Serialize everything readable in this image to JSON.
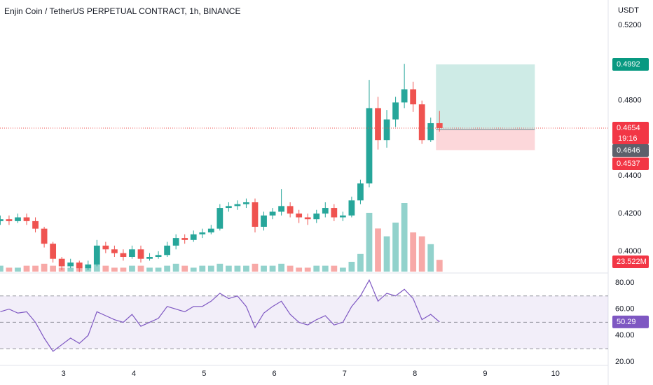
{
  "chart_data": {
    "type": "candlestick",
    "title": "Enjin Coin / TetherUS PERPETUAL CONTRACT, 1h, BINANCE",
    "price_unit": "USDT",
    "x": [
      2.1,
      2.225,
      2.35,
      2.475,
      2.6,
      2.725,
      2.85,
      2.975,
      3.1,
      3.225,
      3.35,
      3.475,
      3.6,
      3.725,
      3.85,
      3.975,
      4.1,
      4.225,
      4.35,
      4.475,
      4.6,
      4.725,
      4.85,
      4.975,
      5.1,
      5.225,
      5.35,
      5.475,
      5.6,
      5.725,
      5.85,
      5.975,
      6.1,
      6.225,
      6.35,
      6.475,
      6.6,
      6.725,
      6.85,
      6.975,
      7.1,
      7.225,
      7.35,
      7.475,
      7.6,
      7.725,
      7.85,
      7.975,
      8.1,
      8.225,
      8.35
    ],
    "open": [
      0.416,
      0.417,
      0.416,
      0.418,
      0.416,
      0.412,
      0.404,
      0.396,
      0.392,
      0.394,
      0.391,
      0.393,
      0.403,
      0.401,
      0.399,
      0.397,
      0.401,
      0.396,
      0.397,
      0.398,
      0.403,
      0.407,
      0.406,
      0.409,
      0.41,
      0.412,
      0.423,
      0.424,
      0.425,
      0.426,
      0.413,
      0.419,
      0.421,
      0.424,
      0.42,
      0.418,
      0.417,
      0.42,
      0.423,
      0.418,
      0.419,
      0.427,
      0.436,
      0.476,
      0.459,
      0.47,
      0.479,
      0.486,
      0.478,
      0.459,
      0.468
    ],
    "high": [
      0.419,
      0.419,
      0.42,
      0.42,
      0.418,
      0.413,
      0.405,
      0.397,
      0.396,
      0.395,
      0.395,
      0.406,
      0.405,
      0.403,
      0.401,
      0.403,
      0.403,
      0.399,
      0.4,
      0.405,
      0.409,
      0.409,
      0.411,
      0.412,
      0.414,
      0.425,
      0.426,
      0.427,
      0.428,
      0.428,
      0.421,
      0.423,
      0.433,
      0.426,
      0.422,
      0.42,
      0.422,
      0.426,
      0.425,
      0.421,
      0.429,
      0.438,
      0.491,
      0.482,
      0.475,
      0.482,
      0.4995,
      0.49,
      0.48,
      0.471,
      0.4745
    ],
    "low": [
      0.414,
      0.414,
      0.415,
      0.414,
      0.41,
      0.402,
      0.394,
      0.39,
      0.391,
      0.389,
      0.39,
      0.392,
      0.399,
      0.397,
      0.395,
      0.396,
      0.394,
      0.395,
      0.396,
      0.397,
      0.401,
      0.404,
      0.405,
      0.407,
      0.409,
      0.411,
      0.421,
      0.422,
      0.423,
      0.41,
      0.411,
      0.417,
      0.419,
      0.418,
      0.415,
      0.414,
      0.415,
      0.418,
      0.416,
      0.416,
      0.418,
      0.425,
      0.434,
      0.454,
      0.455,
      0.466,
      0.476,
      0.474,
      0.457,
      0.458,
      0.4635
    ],
    "close": [
      0.417,
      0.416,
      0.418,
      0.416,
      0.412,
      0.404,
      0.396,
      0.392,
      0.394,
      0.391,
      0.393,
      0.403,
      0.401,
      0.399,
      0.397,
      0.401,
      0.396,
      0.397,
      0.398,
      0.403,
      0.407,
      0.406,
      0.409,
      0.41,
      0.412,
      0.423,
      0.424,
      0.425,
      0.426,
      0.413,
      0.419,
      0.421,
      0.424,
      0.42,
      0.418,
      0.417,
      0.42,
      0.423,
      0.418,
      0.419,
      0.427,
      0.436,
      0.476,
      0.459,
      0.47,
      0.479,
      0.486,
      0.478,
      0.459,
      0.468,
      0.4654
    ],
    "volume": [
      3,
      2,
      2,
      3,
      3,
      4,
      3,
      2,
      2,
      3,
      2,
      4,
      3,
      2,
      2,
      3,
      3,
      2,
      2,
      3,
      4,
      3,
      2,
      3,
      3,
      4,
      3,
      3,
      3,
      4,
      3,
      3,
      4,
      3,
      2,
      2,
      3,
      3,
      3,
      2,
      5,
      9,
      30,
      22,
      18,
      25,
      35,
      20,
      18,
      14,
      6
    ],
    "rsi": [
      58,
      60,
      57,
      58,
      50,
      38,
      28,
      33,
      38,
      34,
      40,
      58,
      55,
      52,
      50,
      56,
      47,
      50,
      53,
      62,
      60,
      58,
      62,
      62,
      66,
      72,
      68,
      70,
      62,
      46,
      57,
      62,
      66,
      56,
      50,
      48,
      52,
      55,
      48,
      50,
      62,
      70,
      82,
      66,
      72,
      70,
      75,
      68,
      52,
      56,
      50.29
    ],
    "up_color": "#26a69a",
    "down_color": "#ef5350",
    "rsi_color": "#7e57c2",
    "xlim": [
      2.096,
      10.75
    ],
    "xticks": [
      3,
      4,
      5,
      6,
      7,
      8,
      9,
      10
    ],
    "ylim": [
      0.3892,
      0.5334
    ],
    "yticks": [
      {
        "value": 0.52,
        "label": "0.5200"
      },
      {
        "value": 0.48,
        "label": "0.4800"
      },
      {
        "value": 0.44,
        "label": "0.4400"
      },
      {
        "value": 0.42,
        "label": "0.4200"
      },
      {
        "value": 0.4,
        "label": "0.4000"
      }
    ],
    "rsi_ylim": [
      17.3,
      85.8
    ],
    "rsi_ticks": [
      {
        "value": 80,
        "label": "80.00"
      },
      {
        "value": 60,
        "label": "60.00"
      },
      {
        "value": 40,
        "label": "40.00"
      },
      {
        "value": 20,
        "label": "20.00"
      }
    ],
    "rsi_bands": [
      70,
      50,
      30
    ],
    "position": {
      "x_start": 8.3,
      "x_end": 9.707,
      "target": 0.4992,
      "entry": 0.4646,
      "stop": 0.4537
    },
    "last_price": 0.4654,
    "countdown": "19:16",
    "volume_label": "23.522M"
  }
}
